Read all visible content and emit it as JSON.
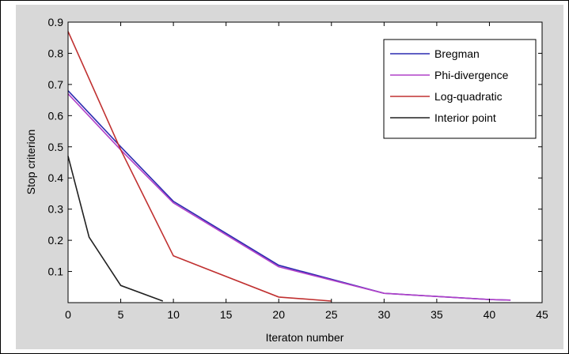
{
  "chart_data": {
    "type": "line",
    "title": "",
    "xlabel": "Iteraton number",
    "ylabel": "Stop criterion",
    "xlim": [
      0,
      45
    ],
    "ylim": [
      0,
      0.9
    ],
    "xticks": [
      0,
      5,
      10,
      15,
      20,
      25,
      30,
      35,
      40,
      45
    ],
    "yticks": [
      0.1,
      0.2,
      0.3,
      0.4,
      0.5,
      0.6,
      0.7,
      0.8,
      0.9
    ],
    "grid": false,
    "legend_position": "top-right",
    "series": [
      {
        "name": "Bregman",
        "color": "#2b2bb0",
        "x": [
          0,
          5,
          10,
          20,
          30,
          40,
          42
        ],
        "y": [
          0.68,
          0.5,
          0.325,
          0.12,
          0.03,
          0.01,
          0.008
        ]
      },
      {
        "name": "Phi-divergence",
        "color": "#b040c8",
        "x": [
          0,
          5,
          10,
          20,
          30,
          40,
          42
        ],
        "y": [
          0.67,
          0.49,
          0.32,
          0.115,
          0.03,
          0.01,
          0.008
        ]
      },
      {
        "name": "Log-quadratic",
        "color": "#c03030",
        "x": [
          0,
          5,
          10,
          20,
          25
        ],
        "y": [
          0.87,
          0.49,
          0.15,
          0.018,
          0.005
        ]
      },
      {
        "name": "Interior point",
        "color": "#202020",
        "x": [
          0,
          2,
          5,
          9
        ],
        "y": [
          0.47,
          0.21,
          0.055,
          0.005
        ]
      }
    ]
  }
}
